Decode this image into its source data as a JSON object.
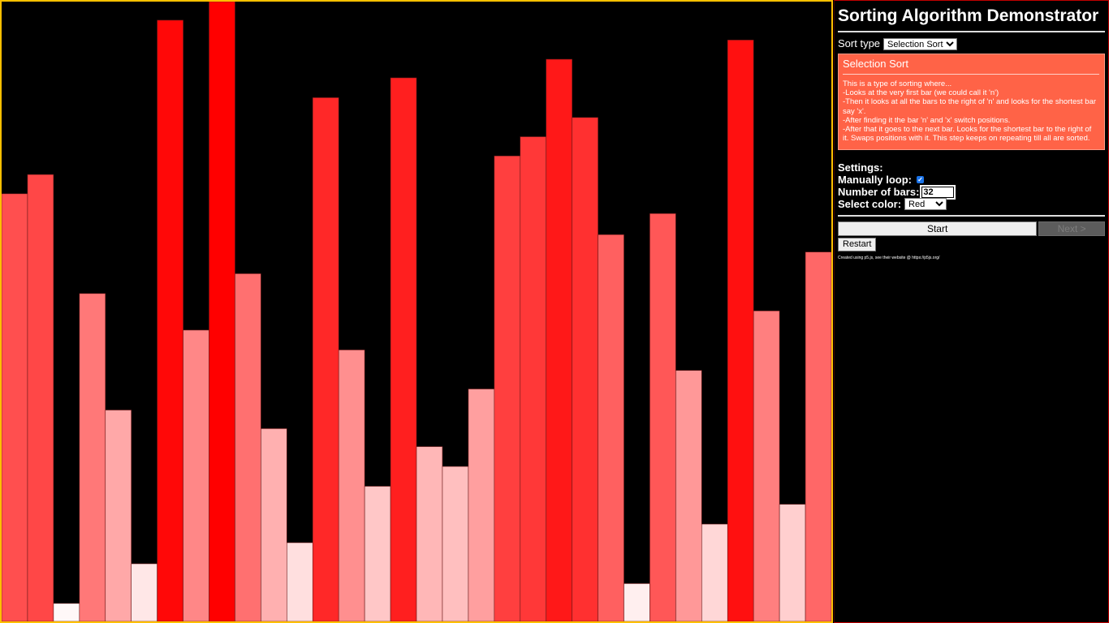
{
  "panel": {
    "title": "Sorting Algorithm Demonstrator",
    "sort_type_label": "Sort type",
    "sort_type_value": "Selection Sort",
    "description": {
      "title": "Selection Sort",
      "lines": [
        "This is a type of sorting where...",
        "-Looks at the very first bar (we could call it 'n')",
        "-Then it looks at all the bars to the right of 'n' and looks for the shortest bar say 'x'.",
        "-After finding it the bar 'n' and 'x' switch positions.",
        "-After that it goes to the next bar. Looks for the shortest bar to the right of it. Swaps positions with it. This step keeps on repeating till all are sorted."
      ]
    },
    "settings": {
      "heading": "Settings:",
      "manual_loop_label": "Manually loop:",
      "manual_loop_checked": true,
      "num_bars_label": "Number of bars:",
      "num_bars_value": "32",
      "color_label": "Select color:",
      "color_value": "Red"
    },
    "buttons": {
      "start": "Start",
      "next": "Next >",
      "restart": "Restart"
    },
    "credit": "Created using p5.js, see their website @ https://p5js.org/"
  },
  "colors": {
    "canvas_border": "#ffc000",
    "panel_border": "#c00000",
    "description_bg": "#ff6347",
    "bar_base": "#ff0000"
  },
  "bars": {
    "count": 32,
    "values": [
      0.69,
      0.721,
      0.029,
      0.529,
      0.341,
      0.093,
      0.97,
      0.47,
      1.0,
      0.561,
      0.311,
      0.127,
      0.845,
      0.438,
      0.218,
      0.877,
      0.282,
      0.25,
      0.375,
      0.751,
      0.782,
      0.907,
      0.813,
      0.624,
      0.061,
      0.658,
      0.405,
      0.157,
      0.938,
      0.501,
      0.189,
      0.596
    ]
  }
}
